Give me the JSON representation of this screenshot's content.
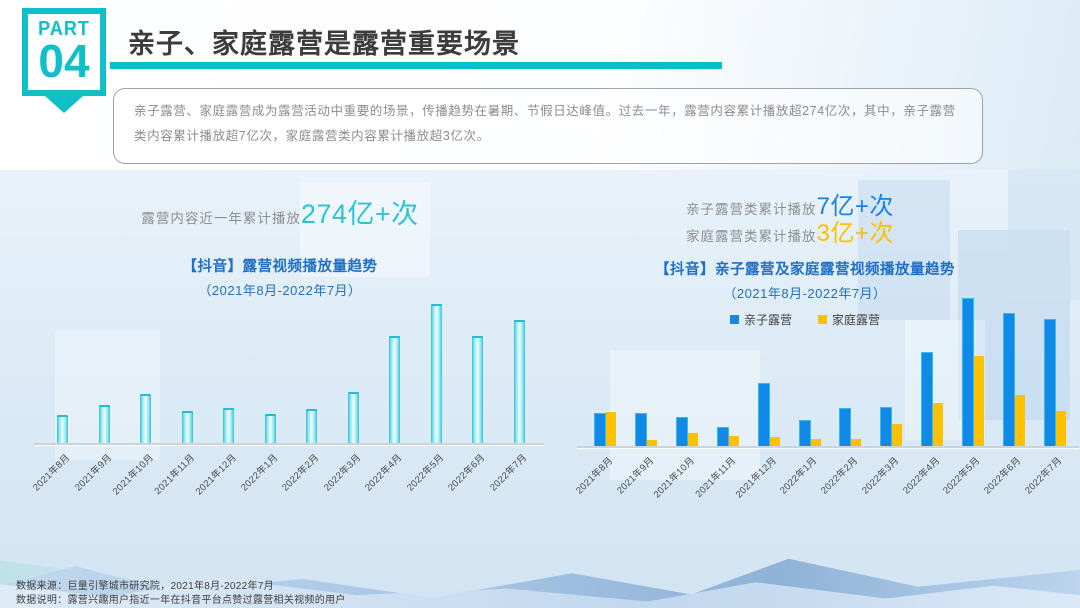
{
  "slide": {
    "part_label": "PART",
    "part_number": "04",
    "title": "亲子、家庭露营是露营重要场景",
    "description": "亲子露营、家庭露营成为露营活动中重要的场景，传播趋势在暑期、节假日达峰值。过去一年，露营内容累计播放超274亿次，其中，亲子露营类内容累计播放超7亿次，家庭露营类内容累计播放超3亿次。",
    "footer": {
      "source": "数据来源：巨量引擎城市研究院，2021年8月-2022年7月",
      "note": "数据说明：露营兴趣用户指近一年在抖音平台点赞过露营相关视频的用户"
    }
  },
  "left_chart": {
    "stat_prefix": "露营内容近一年累计播放",
    "stat_value": "274亿+次",
    "title": "【抖音】露营视频播放量趋势",
    "subtitle": "（2021年8月-2022年7月）"
  },
  "right_chart": {
    "stat1_prefix": "亲子露营类累计播放",
    "stat1_value": "7亿+次",
    "stat2_prefix": "家庭露营类累计播放",
    "stat2_value": "3亿+次",
    "title": "【抖音】亲子露营及家庭露营视频播放量趋势",
    "subtitle": "（2021年8月-2022年7月）",
    "legend": [
      {
        "label": "亲子露营",
        "color": "#1089e8"
      },
      {
        "label": "家庭露营",
        "color": "#ffc000"
      }
    ]
  },
  "colors": {
    "accent_teal": "#10bfc7",
    "title_underline": "#05c0c9",
    "stat_teal": "#2cc5cf",
    "stat_blue": "#1b80e9",
    "stat_yellow": "#ffc000",
    "chart_title_blue": "#1f6fc6",
    "cyan_bar": "#35c8d8",
    "blue_bar": "#1089e8",
    "yellow_bar": "#ffc000"
  },
  "chart_data": [
    {
      "type": "bar",
      "title": "【抖音】露营视频播放量趋势",
      "subtitle": "（2021年8月-2022年7月）",
      "categories": [
        "2021年8月",
        "2021年9月",
        "2021年10月",
        "2021年11月",
        "2021年12月",
        "2022年1月",
        "2022年2月",
        "2022年3月",
        "2022年4月",
        "2022年5月",
        "2022年6月",
        "2022年7月"
      ],
      "values": [
        19,
        26,
        34,
        22,
        24,
        20,
        23,
        36,
        77,
        100,
        77,
        88
      ],
      "bar_color": "#35c8d8",
      "xlabel": "",
      "ylabel": "",
      "y_axis_visible": false,
      "grid": false,
      "value_scale": "relative, peak month (2022年5月) = 100",
      "ylim": [
        0,
        100
      ]
    },
    {
      "type": "bar",
      "title": "【抖音】亲子露营及家庭露营视频播放量趋势",
      "subtitle": "（2021年8月-2022年7月）",
      "categories": [
        "2021年8月",
        "2021年9月",
        "2021年10月",
        "2021年11月",
        "2021年12月",
        "2022年1月",
        "2022年2月",
        "2022年3月",
        "2022年4月",
        "2022年5月",
        "2022年6月",
        "2022年7月"
      ],
      "series": [
        {
          "name": "亲子露营",
          "color": "#1089e8",
          "values": [
            22,
            22,
            19,
            12,
            42,
            17,
            25,
            26,
            63,
            100,
            90,
            86
          ]
        },
        {
          "name": "家庭露营",
          "color": "#ffc000",
          "values": [
            23,
            4,
            9,
            7,
            6,
            5,
            5,
            15,
            29,
            61,
            35,
            24
          ]
        }
      ],
      "xlabel": "",
      "ylabel": "",
      "y_axis_visible": false,
      "grid": false,
      "legend_position": "top",
      "value_scale": "relative, 亲子露营 peak (2022年5月) = 100",
      "ylim": [
        0,
        100
      ]
    }
  ]
}
